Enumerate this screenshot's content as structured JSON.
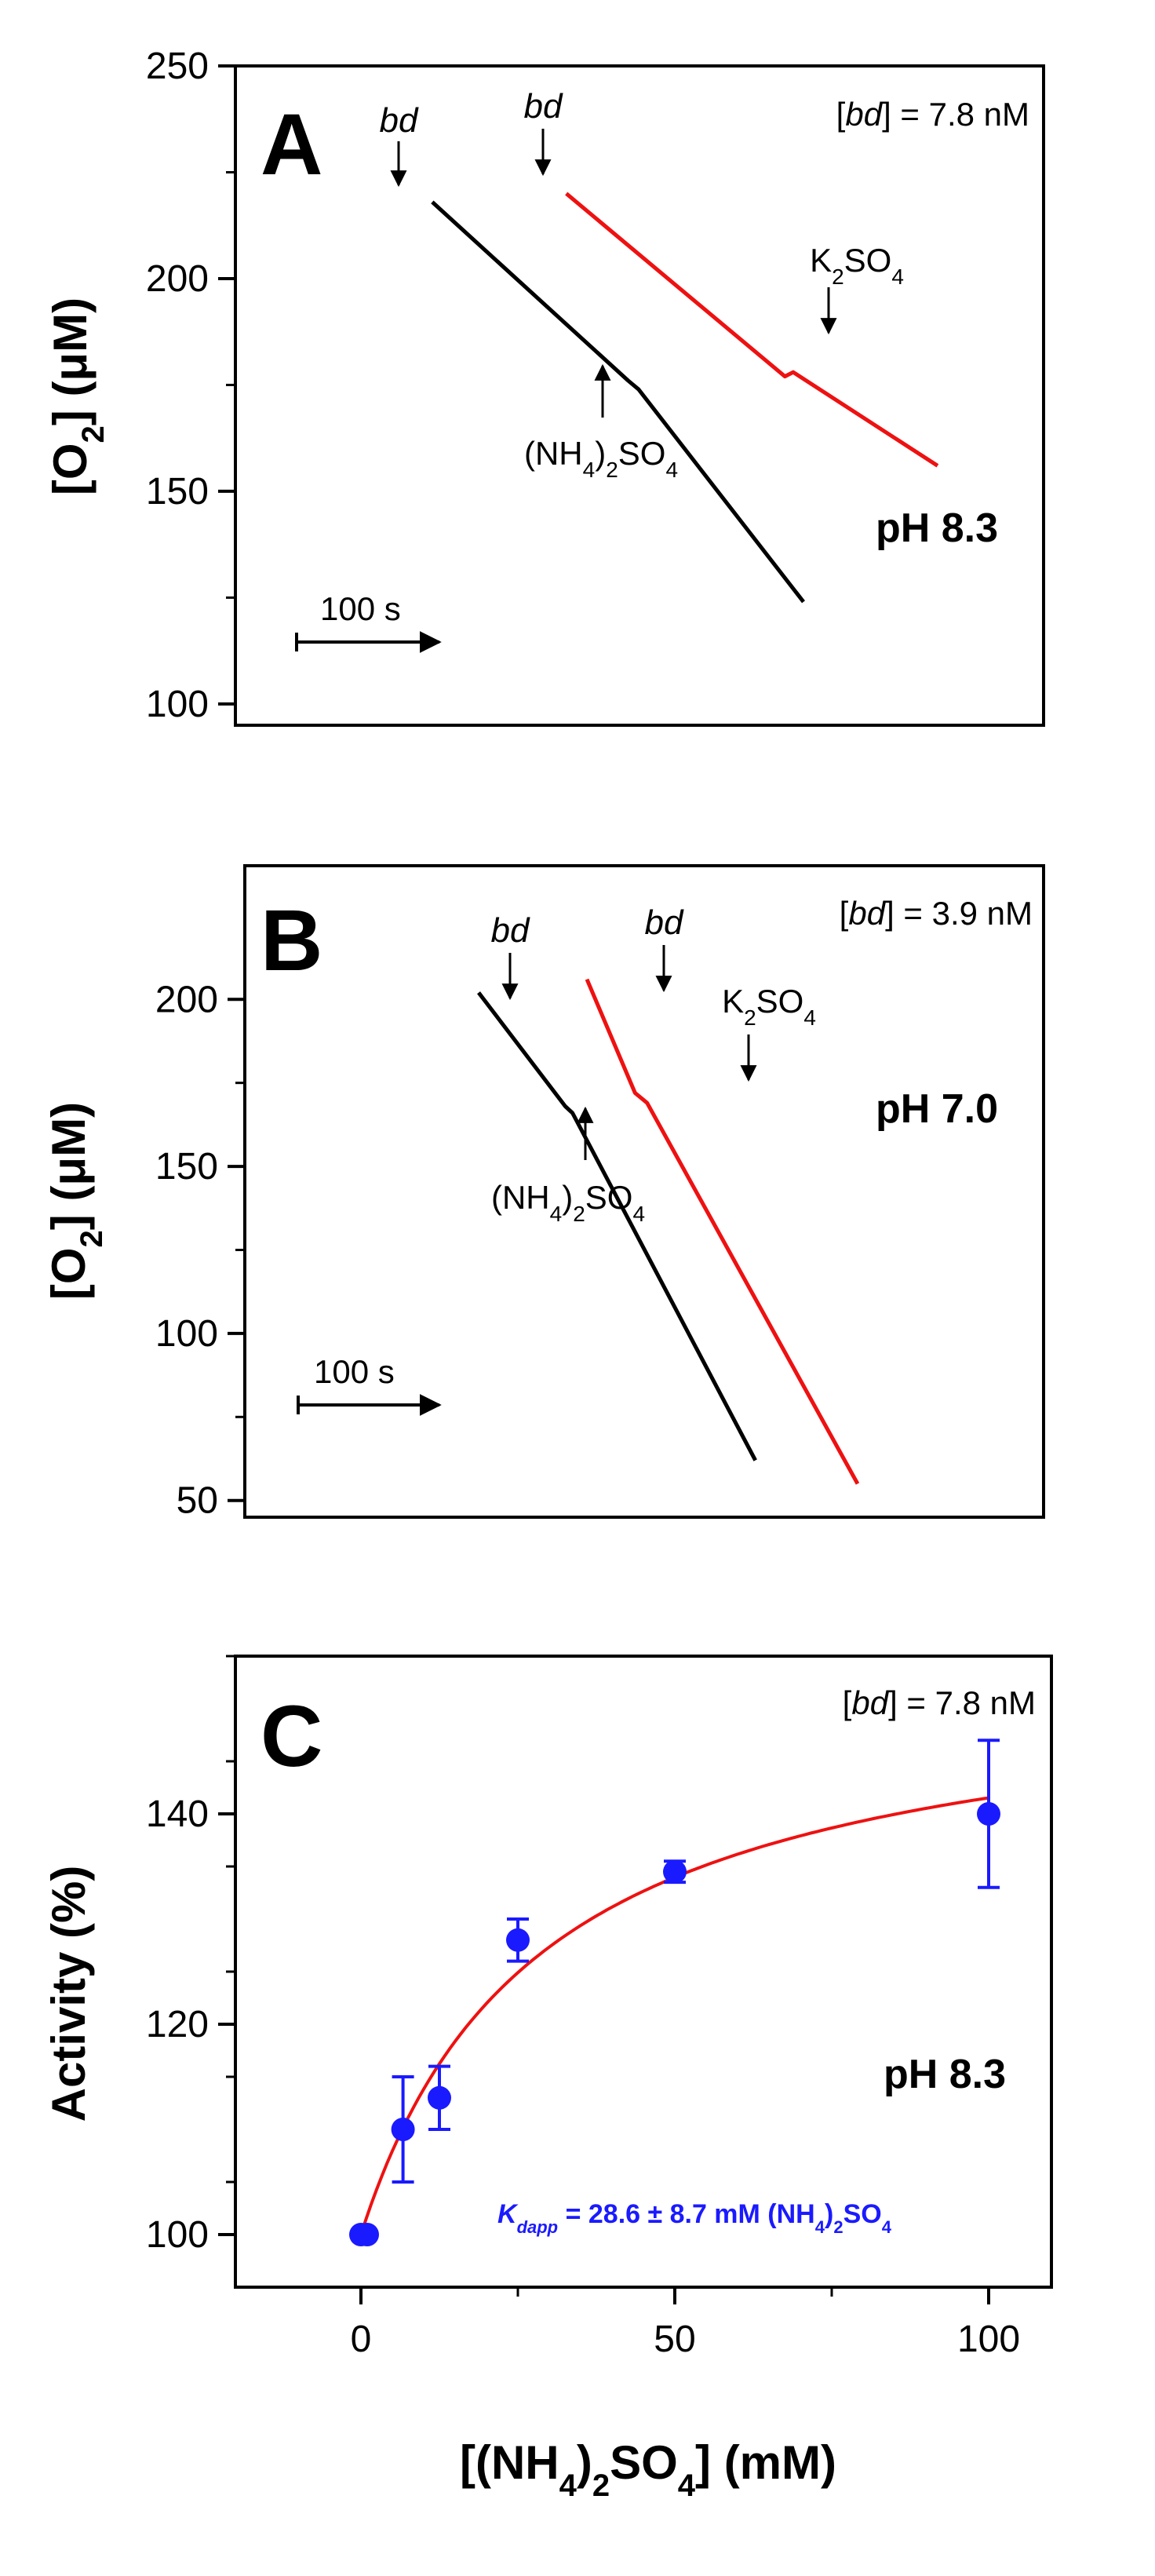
{
  "colors": {
    "axis": "#000000",
    "trace_nh4": "#000000",
    "trace_k2": "#ee1111",
    "points": "#1a1aff",
    "fit": "#ee1111",
    "kd_text": "#1a1aff"
  },
  "chart_data": [
    {
      "id": "A",
      "type": "line",
      "panel_label": "A",
      "ylabel": "[O2] (μM)",
      "ylim": [
        95,
        250
      ],
      "yticks": [
        100,
        150,
        200,
        250
      ],
      "ytick_labels": [
        "100",
        "150",
        "200",
        "250"
      ],
      "conc_label": "[bd] = 7.8 nM",
      "conc_prefix": "[",
      "conc_species": "bd",
      "conc_suffix": "] = 7.8 nM",
      "ph_label": "pH 8.3",
      "scale_bar_label": "100 s",
      "scale_bar_seconds": 100,
      "xlim_s": [
        0,
        700
      ],
      "series": [
        {
          "name": "(NH4)2SO4 trace",
          "color_key": "trace_nh4",
          "points": [
            [
              130,
              218
            ],
            [
              320,
              176
            ],
            [
              330,
              174
            ],
            [
              490,
              124
            ]
          ]
        },
        {
          "name": "K2SO4 trace",
          "color_key": "trace_k2",
          "points": [
            [
              260,
              220
            ],
            [
              472,
              177
            ],
            [
              480,
              178
            ],
            [
              620,
              156
            ]
          ]
        }
      ],
      "annotations": [
        {
          "text": "bd",
          "italic": true,
          "at": [
            130,
            218
          ],
          "dir": "down"
        },
        {
          "text": "bd",
          "italic": true,
          "at": [
            260,
            220
          ],
          "dir": "down"
        },
        {
          "text": "(NH4)2SO4",
          "at": [
            320,
            176
          ],
          "dir": "up"
        },
        {
          "text": "K2SO4",
          "at": [
            472,
            178
          ],
          "dir": "down"
        }
      ]
    },
    {
      "id": "B",
      "type": "line",
      "panel_label": "B",
      "ylabel": "[O2] (μM)",
      "ylim": [
        45,
        240
      ],
      "yticks": [
        50,
        100,
        150,
        200
      ],
      "ytick_labels": [
        "50",
        "100",
        "150",
        "200"
      ],
      "conc_label": "[bd] = 3.9 nM",
      "conc_prefix": "[",
      "conc_species": "bd",
      "conc_suffix": "] = 3.9 nM",
      "ph_label": "pH 7.0",
      "scale_bar_label": "100 s",
      "scale_bar_seconds": 100,
      "xlim_s": [
        0,
        600
      ],
      "series": [
        {
          "name": "(NH4)2SO4 trace",
          "color_key": "trace_nh4",
          "points": [
            [
              150,
              202
            ],
            [
              222,
              168
            ],
            [
              228,
              166
            ],
            [
              380,
              62
            ]
          ]
        },
        {
          "name": "K2SO4 trace",
          "color_key": "trace_k2",
          "points": [
            [
              240,
              206
            ],
            [
              280,
              172
            ],
            [
              290,
              169
            ],
            [
              465,
              55
            ]
          ]
        }
      ],
      "annotations": [
        {
          "text": "bd",
          "italic": true,
          "at": [
            150,
            202
          ],
          "dir": "down"
        },
        {
          "text": "bd",
          "italic": true,
          "at": [
            240,
            206
          ],
          "dir": "down"
        },
        {
          "text": "(NH4)2SO4",
          "at": [
            224,
            168
          ],
          "dir": "up"
        },
        {
          "text": "K2SO4",
          "at": [
            285,
            171
          ],
          "dir": "down"
        }
      ]
    },
    {
      "id": "C",
      "type": "scatter",
      "panel_label": "C",
      "title": "",
      "xlabel": "[(NH4)2SO4] (mM)",
      "ylabel": "Activity (%)",
      "xlim": [
        -20,
        110
      ],
      "ylim": [
        95,
        155
      ],
      "xticks": [
        0,
        50,
        100
      ],
      "xtick_labels": [
        "0",
        "50",
        "100"
      ],
      "yticks": [
        100,
        120,
        140
      ],
      "ytick_labels": [
        "100",
        "120",
        "140"
      ],
      "conc_label": "[bd] = 7.8 nM",
      "conc_prefix": "[",
      "conc_species": "bd",
      "conc_suffix": "] = 7.8 nM",
      "ph_label": "pH 8.3",
      "kd_label": "Kdapp = 28.6 ± 8.7 mM (NH4)2SO4",
      "kd_K": "K",
      "kd_sub": "dapp",
      "kd_rest": " = 28.6 ± 8.7 mM (NH",
      "kd_4": "4",
      "kd_paren": ")",
      "kd_2": "2",
      "kd_SO": "SO",
      "kd_4b": "4",
      "points": [
        {
          "x": 0,
          "y": 100,
          "err": 0
        },
        {
          "x": 1,
          "y": 100,
          "err": 0
        },
        {
          "x": 6.7,
          "y": 110,
          "err": 5
        },
        {
          "x": 12.5,
          "y": 113,
          "err": 3
        },
        {
          "x": 25,
          "y": 128,
          "err": 2
        },
        {
          "x": 50,
          "y": 134.5,
          "err": 1
        },
        {
          "x": 100,
          "y": 140,
          "err": 7
        }
      ],
      "fit": {
        "model": "hyperbolic",
        "Kd": 28.6,
        "amax": 53.4,
        "base": 100
      }
    }
  ]
}
